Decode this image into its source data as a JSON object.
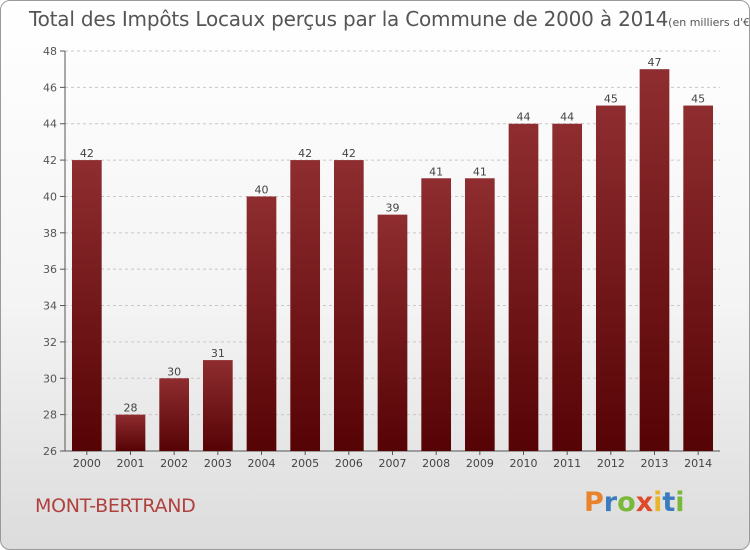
{
  "chart_data": {
    "type": "bar",
    "title": "Total des Impôts Locaux perçus par la Commune de 2000 à 2014",
    "subtitle": "(en milliers d'€)",
    "categories": [
      "2000",
      "2001",
      "2002",
      "2003",
      "2004",
      "2005",
      "2006",
      "2007",
      "2008",
      "2009",
      "2010",
      "2011",
      "2012",
      "2013",
      "2014"
    ],
    "values": [
      42,
      28,
      30,
      31,
      40,
      42,
      42,
      39,
      41,
      41,
      44,
      44,
      45,
      47,
      45
    ],
    "ylim": [
      26,
      48
    ],
    "yticks": [
      "26",
      "28",
      "30",
      "32",
      "34",
      "36",
      "38",
      "40",
      "42",
      "44",
      "46",
      "48"
    ],
    "xlabel": "",
    "ylabel": "",
    "grid": true,
    "bar_color": "#7d1c1f"
  },
  "footer": {
    "commune": "MONT-BERTRAND",
    "brand": "Proxiti",
    "brand_colors": [
      "#e8832c",
      "#3b7bc0",
      "#7ab83a",
      "#e04a2a",
      "#e8b52c",
      "#3b7bc0",
      "#7ab83a"
    ]
  }
}
